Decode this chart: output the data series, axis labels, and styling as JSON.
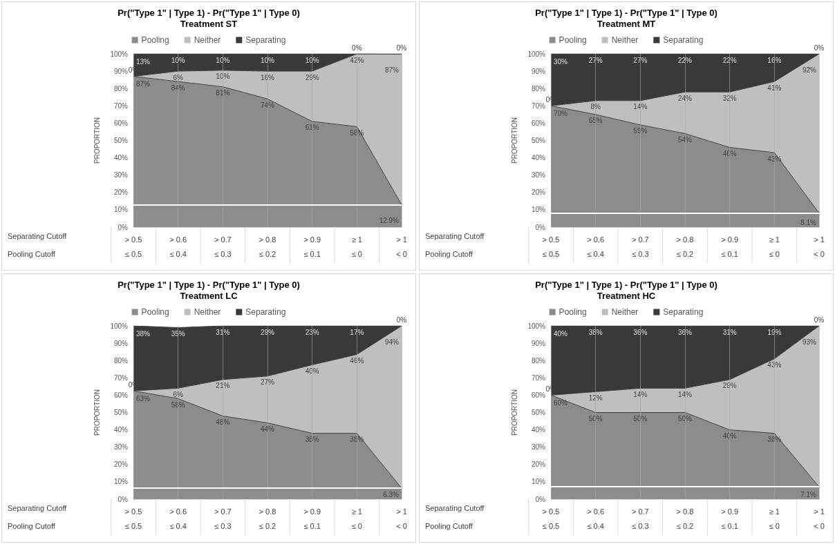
{
  "chart_data": [
    {
      "type": "area",
      "stacked": true,
      "title": "Pr(\"Type 1\" | Type 1) - Pr(\"Type 1\" | Type 0)",
      "subtitle": "Treatment ST",
      "ylabel": "PROPORTION",
      "legend": "top",
      "grid": "x",
      "categories": [
        "> 0.5",
        "> 0.6",
        "> 0.7",
        "> 0.8",
        "> 0.9",
        "≥ 1",
        "> 1"
      ],
      "ylim": [
        0,
        100
      ],
      "yticks": [
        {
          "value": 0,
          "label": "0%"
        },
        {
          "value": 10,
          "label": "10%"
        },
        {
          "value": 20,
          "label": "20%"
        },
        {
          "value": 30,
          "label": "30%"
        },
        {
          "value": 40,
          "label": "40%"
        },
        {
          "value": 50,
          "label": "50%"
        },
        {
          "value": 60,
          "label": "60%"
        },
        {
          "value": 70,
          "label": "70%"
        },
        {
          "value": 80,
          "label": "80%"
        },
        {
          "value": 90,
          "label": "90%"
        },
        {
          "value": 100,
          "label": "100%"
        }
      ],
      "series": [
        {
          "name": "Pooling",
          "color": "#8c8c8c",
          "values": [
            87,
            84,
            81,
            74,
            61,
            58,
            12.9
          ],
          "value_labels": [
            "87%",
            "84%",
            "81%",
            "74%",
            "61%",
            "58%",
            "12.9%"
          ]
        },
        {
          "name": "Neither",
          "color": "#bfbfbf",
          "values": [
            0,
            6,
            9.5,
            16,
            29,
            42,
            87
          ],
          "value_labels": [
            "0%",
            "6%",
            "10%",
            "16%",
            "29%",
            "42%",
            "87%"
          ]
        },
        {
          "name": "Separating",
          "color": "#393939",
          "values": [
            13,
            10,
            9.5,
            10,
            10,
            0,
            0
          ],
          "value_labels": [
            "13%",
            "10%",
            "10%",
            "10%",
            "10%",
            "0%",
            "0%"
          ]
        }
      ],
      "ref_lines": [
        {
          "axis": "y",
          "value": 12.9,
          "color": "#ffffff"
        }
      ],
      "annotations": [
        "Separating Cutoff",
        "Pooling Cutoff",
        "≤ 0.5",
        "≤ 0.4",
        "≤ 0.3",
        "≤ 0.2",
        "≤ 0.1",
        "≤ 0",
        "< 0"
      ]
    },
    {
      "type": "area",
      "stacked": true,
      "title": "Pr(\"Type 1\" | Type 1) - Pr(\"Type 1\" | Type 0)",
      "subtitle": "Treatment MT",
      "ylabel": "PROPORTION",
      "legend": "top",
      "grid": "x",
      "categories": [
        "> 0.5",
        "> 0.6",
        "> 0.7",
        "> 0.8",
        "> 0.9",
        "≥ 1",
        "> 1"
      ],
      "ylim": [
        0,
        100
      ],
      "yticks": [
        {
          "value": 0,
          "label": "0%"
        },
        {
          "value": 10,
          "label": "10%"
        },
        {
          "value": 20,
          "label": "20%"
        },
        {
          "value": 30,
          "label": "30%"
        },
        {
          "value": 40,
          "label": "40%"
        },
        {
          "value": 50,
          "label": "50%"
        },
        {
          "value": 60,
          "label": "60%"
        },
        {
          "value": 70,
          "label": "70%"
        },
        {
          "value": 80,
          "label": "80%"
        },
        {
          "value": 90,
          "label": "90%"
        },
        {
          "value": 100,
          "label": "100%"
        }
      ],
      "series": [
        {
          "name": "Pooling",
          "color": "#8c8c8c",
          "values": [
            70,
            65,
            59,
            54,
            46,
            43,
            8.1
          ],
          "value_labels": [
            "70%",
            "65%",
            "59%",
            "54%",
            "46%",
            "43%",
            "8.1%"
          ]
        },
        {
          "name": "Neither",
          "color": "#bfbfbf",
          "values": [
            0,
            8,
            14,
            24,
            32,
            41,
            91.9
          ],
          "value_labels": [
            "0%",
            "8%",
            "14%",
            "24%",
            "32%",
            "41%",
            "92%"
          ]
        },
        {
          "name": "Separating",
          "color": "#393939",
          "values": [
            30,
            27,
            27,
            22,
            22,
            16,
            0
          ],
          "value_labels": [
            "30%",
            "27%",
            "27%",
            "22%",
            "22%",
            "16%",
            "0%"
          ]
        }
      ],
      "ref_lines": [
        {
          "axis": "y",
          "value": 8.1,
          "color": "#ffffff"
        }
      ],
      "annotations": [
        "Separating Cutoff",
        "Pooling Cutoff",
        "≤ 0.5",
        "≤ 0.4",
        "≤ 0.3",
        "≤ 0.2",
        "≤ 0.1",
        "≤ 0",
        "< 0"
      ]
    },
    {
      "type": "area",
      "stacked": true,
      "title": "Pr(\"Type 1\" | Type 1) - Pr(\"Type 1\" | Type 0)",
      "subtitle": "Treatment LC",
      "ylabel": "PROPORTION",
      "legend": "top",
      "grid": "x",
      "categories": [
        "> 0.5",
        "> 0.6",
        "> 0.7",
        "> 0.8",
        "> 0.9",
        "≥ 1",
        "> 1"
      ],
      "ylim": [
        0,
        100
      ],
      "yticks": [
        {
          "value": 0,
          "label": "0%"
        },
        {
          "value": 10,
          "label": "10%"
        },
        {
          "value": 20,
          "label": "20%"
        },
        {
          "value": 30,
          "label": "30%"
        },
        {
          "value": 40,
          "label": "40%"
        },
        {
          "value": 50,
          "label": "50%"
        },
        {
          "value": 60,
          "label": "60%"
        },
        {
          "value": 70,
          "label": "70%"
        },
        {
          "value": 80,
          "label": "80%"
        },
        {
          "value": 90,
          "label": "90%"
        },
        {
          "value": 100,
          "label": "100%"
        }
      ],
      "series": [
        {
          "name": "Pooling",
          "color": "#8c8c8c",
          "values": [
            62.5,
            58,
            48,
            44,
            38,
            38,
            6.3
          ],
          "value_labels": [
            "63%",
            "58%",
            "48%",
            "44%",
            "38%",
            "38%",
            "6.3%"
          ]
        },
        {
          "name": "Neither",
          "color": "#bfbfbf",
          "values": [
            0,
            6,
            21,
            27,
            39.5,
            45.5,
            93.7
          ],
          "value_labels": [
            "0%",
            "6%",
            "21%",
            "27%",
            "40%",
            "46%",
            "94%"
          ]
        },
        {
          "name": "Separating",
          "color": "#393939",
          "values": [
            37.5,
            35,
            31,
            29,
            22.5,
            16.5,
            0
          ],
          "value_labels": [
            "38%",
            "35%",
            "31%",
            "29%",
            "23%",
            "17%",
            "0%"
          ]
        }
      ],
      "ref_lines": [
        {
          "axis": "y",
          "value": 6.3,
          "color": "#ffffff"
        }
      ],
      "annotations": [
        "Separating Cutoff",
        "Pooling Cutoff",
        "≤ 0.5",
        "≤ 0.4",
        "≤ 0.3",
        "≤ 0.2",
        "≤ 0.1",
        "≤ 0",
        "< 0"
      ]
    },
    {
      "type": "area",
      "stacked": true,
      "title": "Pr(\"Type 1\" | Type 1) - Pr(\"Type 1\" | Type 0)",
      "subtitle": "Treatment HC",
      "ylabel": "PROPORTION",
      "legend": "top",
      "grid": "x",
      "categories": [
        "> 0.5",
        "> 0.6",
        "> 0.7",
        "> 0.8",
        "> 0.9",
        "≥ 1",
        "> 1"
      ],
      "ylim": [
        0,
        100
      ],
      "yticks": [
        {
          "value": 0,
          "label": "0%"
        },
        {
          "value": 10,
          "label": "10%"
        },
        {
          "value": 20,
          "label": "20%"
        },
        {
          "value": 30,
          "label": "30%"
        },
        {
          "value": 40,
          "label": "40%"
        },
        {
          "value": 50,
          "label": "50%"
        },
        {
          "value": 60,
          "label": "60%"
        },
        {
          "value": 70,
          "label": "70%"
        },
        {
          "value": 80,
          "label": "80%"
        },
        {
          "value": 90,
          "label": "90%"
        },
        {
          "value": 100,
          "label": "100%"
        }
      ],
      "series": [
        {
          "name": "Pooling",
          "color": "#8c8c8c",
          "values": [
            60,
            50,
            50,
            50,
            40,
            38,
            7.1
          ],
          "value_labels": [
            "60%",
            "50%",
            "50%",
            "50%",
            "40%",
            "38%",
            "7.1%"
          ]
        },
        {
          "name": "Neither",
          "color": "#bfbfbf",
          "values": [
            0,
            12,
            14,
            14,
            29,
            43,
            92.9
          ],
          "value_labels": [
            "0%",
            "12%",
            "14%",
            "14%",
            "29%",
            "43%",
            "93%"
          ]
        },
        {
          "name": "Separating",
          "color": "#393939",
          "values": [
            40,
            38,
            36,
            36,
            31,
            19,
            0
          ],
          "value_labels": [
            "40%",
            "38%",
            "36%",
            "36%",
            "31%",
            "19%",
            "0%"
          ]
        }
      ],
      "ref_lines": [
        {
          "axis": "y",
          "value": 7.1,
          "color": "#ffffff"
        }
      ],
      "annotations": [
        "Separating Cutoff",
        "Pooling Cutoff",
        "≤ 0.5",
        "≤ 0.4",
        "≤ 0.3",
        "≤ 0.2",
        "≤ 0.1",
        "≤ 0",
        "< 0"
      ]
    }
  ]
}
